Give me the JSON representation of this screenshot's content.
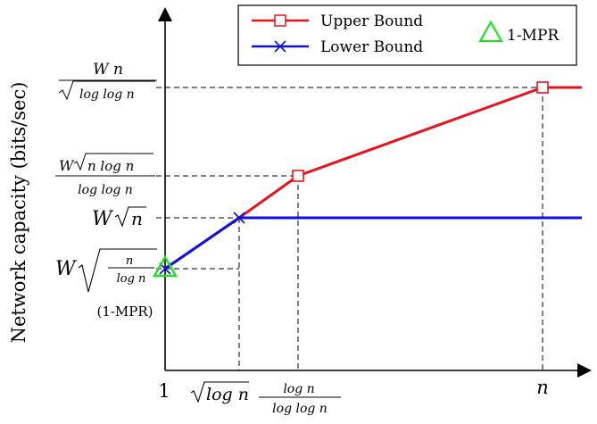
{
  "chart_data": {
    "type": "line",
    "ylabel": "Network capacity (bits/sec)",
    "x_tick_labels": [
      {
        "key": "one",
        "text": "1"
      },
      {
        "key": "sqrtlog",
        "text": "√log n"
      },
      {
        "key": "logratio",
        "text": "log n / log log n"
      },
      {
        "key": "n",
        "text": "n"
      }
    ],
    "y_tick_labels": [
      {
        "key": "sqrtn_over_logn",
        "text": "W √(n / log n)",
        "sub": "(1-MPR)"
      },
      {
        "key": "sqrtn",
        "text": "W √n"
      },
      {
        "key": "sqrt_nlogn_over_loglogn",
        "text": "W √(n log n) / log log n"
      },
      {
        "key": "n_over_sqrtloglogn",
        "text": "W n / √(log log n)"
      }
    ],
    "series": [
      {
        "name": "Upper Bound",
        "color": "#e8141c",
        "marker": "square",
        "points": [
          {
            "x": "one",
            "y": "sqrtn_over_logn"
          },
          {
            "x": "sqrtlog",
            "y": "sqrtn"
          },
          {
            "x": "logratio",
            "y": "sqrt_nlogn_over_loglogn"
          },
          {
            "x": "n",
            "y": "n_over_sqrtloglogn"
          }
        ],
        "marked": [
          "logratio",
          "n"
        ],
        "extends_to_right_edge": true
      },
      {
        "name": "Lower Bound",
        "color": "#1010e0",
        "marker": "x",
        "points": [
          {
            "x": "one",
            "y": "sqrtn_over_logn"
          },
          {
            "x": "sqrtlog",
            "y": "sqrtn"
          }
        ],
        "marked": [
          "one",
          "sqrtlog"
        ],
        "extends_to_right_edge": true
      }
    ],
    "special_points": [
      {
        "name": "1-MPR",
        "color": "#22dd22",
        "marker": "triangle",
        "x": "one",
        "y": "sqrtn_over_logn"
      }
    ],
    "legend": {
      "placement": "top-right",
      "entries": [
        "Upper Bound",
        "Lower Bound",
        "1-MPR"
      ]
    },
    "grid": "dashed reference lines at key points"
  }
}
